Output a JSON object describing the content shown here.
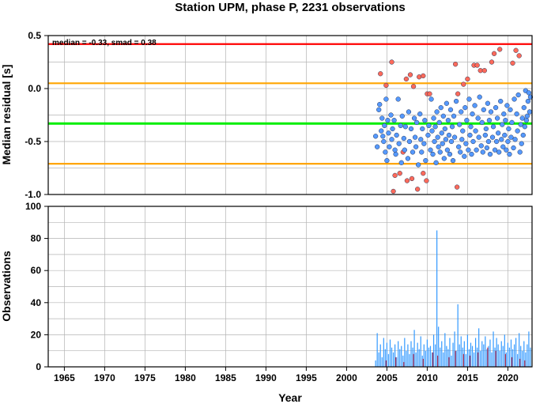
{
  "chart_data": [
    {
      "type": "scatter",
      "title": "Station UPM, phase P, 2231 observations",
      "ylabel": "Median residual [s]",
      "xlim": [
        1963,
        2023
      ],
      "ylim": [
        -1.0,
        0.5
      ],
      "yticks": [
        "0.5",
        "0.0",
        "-0.5",
        "-1.0"
      ],
      "grid": true,
      "annotation": "median = -0.33, smad = 0.38",
      "reference_lines": [
        {
          "value": 0.42,
          "color": "#ff0000"
        },
        {
          "value": 0.05,
          "color": "#ffa500"
        },
        {
          "value": -0.33,
          "color": "#00ee00"
        },
        {
          "value": -0.71,
          "color": "#ffa500"
        }
      ],
      "series": [
        {
          "color": "#ff6a5a",
          "x": [
            2004.2,
            2004.9,
            2005.6,
            2006.6,
            2007.0,
            2007.4,
            2007.9,
            2008.3,
            2009.0,
            2009.5,
            2010.0,
            2010.3,
            2013.5,
            2013.8,
            2014.5,
            2015.0,
            2015.8,
            2016.2,
            2016.6,
            2017.1,
            2018.0,
            2018.3,
            2019.0,
            2020.6,
            2021.0,
            2021.4,
            2005.8,
            2006.0,
            2007.5,
            2008.1,
            2008.8,
            2009.5,
            2009.9,
            2013.7
          ],
          "y": [
            0.14,
            0.03,
            0.25,
            -0.8,
            -0.6,
            0.09,
            0.13,
            0.02,
            0.11,
            0.12,
            -0.05,
            -0.05,
            0.23,
            -0.05,
            0.04,
            0.09,
            0.22,
            0.22,
            0.17,
            0.17,
            0.25,
            0.33,
            0.37,
            0.24,
            0.36,
            0.31,
            -0.97,
            -0.82,
            -0.87,
            -0.85,
            -0.95,
            -0.8,
            -0.87,
            -0.93
          ]
        },
        {
          "color": "#5599ff",
          "x": [
            2003.6,
            2003.8,
            2004.0,
            2004.1,
            2004.3,
            2004.4,
            2004.5,
            2004.6,
            2004.7,
            2004.8,
            2004.9,
            2005.0,
            2005.1,
            2005.2,
            2005.3,
            2005.5,
            2005.6,
            2005.7,
            2005.9,
            2006.0,
            2006.1,
            2006.2,
            2006.4,
            2006.5,
            2006.7,
            2006.8,
            2006.9,
            2007.1,
            2007.2,
            2007.3,
            2007.6,
            2007.7,
            2007.8,
            2008.0,
            2008.2,
            2008.4,
            2008.5,
            2008.6,
            2008.7,
            2008.9,
            2009.1,
            2009.2,
            2009.3,
            2009.4,
            2009.6,
            2009.7,
            2009.8,
            2010.1,
            2010.2,
            2010.4,
            2010.5,
            2010.6,
            2010.7,
            2010.8,
            2010.9,
            2011.0,
            2011.1,
            2011.2,
            2011.3,
            2011.4,
            2011.5,
            2011.6,
            2011.7,
            2011.8,
            2011.9,
            2012.0,
            2012.1,
            2012.2,
            2012.3,
            2012.4,
            2012.5,
            2012.6,
            2012.7,
            2012.8,
            2012.9,
            2013.0,
            2013.1,
            2013.2,
            2013.3,
            2013.4,
            2013.6,
            2013.9,
            2014.0,
            2014.1,
            2014.2,
            2014.3,
            2014.4,
            2014.6,
            2014.7,
            2014.8,
            2014.9,
            2015.1,
            2015.2,
            2015.3,
            2015.4,
            2015.5,
            2015.6,
            2015.7,
            2015.9,
            2016.0,
            2016.1,
            2016.3,
            2016.4,
            2016.5,
            2016.7,
            2016.8,
            2016.9,
            2017.0,
            2017.2,
            2017.3,
            2017.4,
            2017.5,
            2017.6,
            2017.7,
            2017.8,
            2017.9,
            2018.1,
            2018.2,
            2018.4,
            2018.5,
            2018.6,
            2018.7,
            2018.8,
            2018.9,
            2019.1,
            2019.2,
            2019.3,
            2019.4,
            2019.5,
            2019.6,
            2019.7,
            2019.8,
            2019.9,
            2020.0,
            2020.1,
            2020.2,
            2020.3,
            2020.4,
            2020.5,
            2020.7,
            2020.8,
            2020.9,
            2021.1,
            2021.2,
            2021.3,
            2021.5,
            2021.6,
            2021.7,
            2021.8,
            2021.9,
            2022.0,
            2022.1,
            2022.2,
            2022.3,
            2022.4,
            2022.5,
            2022.6,
            2022.7,
            2022.8
          ],
          "y": [
            -0.45,
            -0.55,
            -0.2,
            -0.15,
            -0.4,
            -0.28,
            -0.45,
            -0.5,
            -0.35,
            -0.6,
            -0.1,
            -0.68,
            -0.3,
            -0.42,
            -0.55,
            -0.25,
            -0.48,
            -0.38,
            -0.3,
            -0.58,
            -0.62,
            -0.44,
            -0.1,
            -0.52,
            -0.35,
            -0.7,
            -0.26,
            -0.47,
            -0.58,
            -0.36,
            -0.66,
            -0.22,
            -0.5,
            -0.38,
            -0.6,
            -0.28,
            -0.46,
            -0.55,
            -0.32,
            -0.72,
            -0.24,
            -0.48,
            -0.6,
            -0.38,
            -0.52,
            -0.3,
            -0.68,
            -0.44,
            -0.35,
            -0.58,
            -0.1,
            -0.4,
            -0.62,
            -0.28,
            -0.5,
            -0.36,
            -0.7,
            -0.22,
            -0.46,
            -0.55,
            -0.32,
            -0.6,
            -0.18,
            -0.42,
            -0.52,
            -0.26,
            -0.66,
            -0.38,
            -0.48,
            -0.14,
            -0.58,
            -0.3,
            -0.44,
            -0.62,
            -0.2,
            -0.5,
            -0.36,
            -0.68,
            -0.26,
            -0.46,
            -0.12,
            -0.55,
            -0.34,
            -0.6,
            -0.22,
            -0.48,
            -0.4,
            -0.64,
            -0.18,
            -0.52,
            -0.3,
            -0.58,
            -0.1,
            -0.44,
            -0.36,
            -0.62,
            -0.24,
            -0.5,
            -0.16,
            -0.4,
            -0.58,
            -0.28,
            -0.46,
            -0.08,
            -0.54,
            -0.32,
            -0.6,
            -0.2,
            -0.44,
            -0.38,
            -0.56,
            -0.14,
            -0.5,
            -0.3,
            -0.62,
            -0.22,
            -0.46,
            -0.36,
            -0.58,
            -0.18,
            -0.5,
            -0.28,
            -0.42,
            -0.6,
            -0.12,
            -0.48,
            -0.34,
            -0.55,
            -0.24,
            -0.44,
            -0.3,
            -0.58,
            -0.16,
            -0.5,
            -0.38,
            -0.62,
            -0.2,
            -0.46,
            -0.32,
            -0.56,
            -0.1,
            -0.48,
            -0.24,
            -0.4,
            -0.06,
            -0.6,
            -0.34,
            -0.52,
            -0.28,
            -0.44,
            -0.18,
            -0.36,
            -0.02,
            -0.3,
            -0.26,
            -0.12,
            -0.04,
            -0.22,
            -0.08
          ]
        }
      ]
    },
    {
      "type": "bar",
      "ylabel": "Observations",
      "xlabel": "Year",
      "xlim": [
        1963,
        2023
      ],
      "ylim": [
        0,
        100
      ],
      "xticks": [
        "1965",
        "1970",
        "1975",
        "1980",
        "1985",
        "1990",
        "1995",
        "2000",
        "2005",
        "2010",
        "2015",
        "2020"
      ],
      "yticks": [
        "100",
        "80",
        "60",
        "40",
        "20",
        "0"
      ],
      "grid": true,
      "series": [
        {
          "color": "#3399ff",
          "x": [
            2003.6,
            2003.8,
            2004.0,
            2004.2,
            2004.4,
            2004.6,
            2004.8,
            2005.0,
            2005.2,
            2005.4,
            2005.6,
            2005.8,
            2006.0,
            2006.2,
            2006.4,
            2006.6,
            2006.8,
            2007.0,
            2007.2,
            2007.4,
            2007.6,
            2007.8,
            2008.0,
            2008.2,
            2008.4,
            2008.6,
            2008.8,
            2009.0,
            2009.2,
            2009.4,
            2009.6,
            2009.8,
            2010.0,
            2010.2,
            2010.4,
            2010.6,
            2010.8,
            2011.0,
            2011.2,
            2011.4,
            2011.6,
            2011.8,
            2012.0,
            2012.2,
            2012.4,
            2012.6,
            2012.8,
            2013.0,
            2013.2,
            2013.4,
            2013.6,
            2013.8,
            2014.0,
            2014.2,
            2014.4,
            2014.6,
            2014.8,
            2015.0,
            2015.2,
            2015.4,
            2015.6,
            2015.8,
            2016.0,
            2016.2,
            2016.4,
            2016.6,
            2016.8,
            2017.0,
            2017.2,
            2017.4,
            2017.6,
            2017.8,
            2018.0,
            2018.2,
            2018.4,
            2018.6,
            2018.8,
            2019.0,
            2019.2,
            2019.4,
            2019.6,
            2019.8,
            2020.0,
            2020.2,
            2020.4,
            2020.6,
            2020.8,
            2021.0,
            2021.2,
            2021.4,
            2021.6,
            2021.8,
            2022.0,
            2022.2,
            2022.4,
            2022.6,
            2022.8
          ],
          "values": [
            4,
            21,
            9,
            14,
            6,
            18,
            11,
            15,
            8,
            17,
            12,
            9,
            14,
            6,
            16,
            11,
            13,
            7,
            18,
            10,
            14,
            8,
            16,
            12,
            23,
            9,
            15,
            11,
            19,
            7,
            14,
            10,
            17,
            12,
            13,
            9,
            20,
            14,
            85,
            25,
            12,
            16,
            9,
            21,
            13,
            11,
            18,
            7,
            15,
            22,
            10,
            39,
            14,
            19,
            12,
            16,
            8,
            20,
            11,
            15,
            13,
            9,
            18,
            12,
            24,
            10,
            16,
            14,
            19,
            11,
            13,
            17,
            9,
            22,
            12,
            18,
            14,
            10,
            16,
            13,
            20,
            9,
            15,
            12,
            17,
            11,
            14,
            18,
            8,
            21,
            13,
            10,
            16,
            9,
            14,
            22,
            12
          ]
        },
        {
          "color": "#cc3344",
          "x": [
            2004.9,
            2006.1,
            2007.1,
            2008.3,
            2009.5,
            2010.7,
            2011.3,
            2012.7,
            2013.5,
            2014.5,
            2015.3,
            2016.3,
            2017.5,
            2018.5,
            2019.7,
            2020.5,
            2021.5,
            2022.1
          ],
          "values": [
            4,
            6,
            3,
            8,
            5,
            9,
            7,
            6,
            10,
            8,
            7,
            9,
            12,
            10,
            8,
            6,
            5,
            4
          ]
        }
      ]
    }
  ]
}
